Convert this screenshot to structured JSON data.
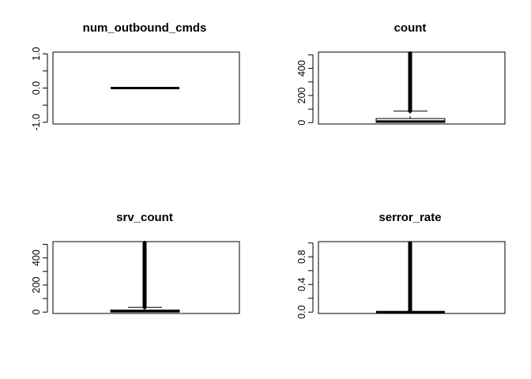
{
  "chart_data": [
    {
      "type": "boxplot",
      "title": "num_outbound_cmds",
      "ylim": [
        -1.05,
        1.05
      ],
      "yticks": [
        -1.0,
        -0.5,
        0.0,
        0.5,
        1.0
      ],
      "ytick_labels": [
        "-1.0",
        "",
        "0.0",
        "",
        "1.0"
      ],
      "box": {
        "min": 0,
        "q1": 0,
        "median": 0,
        "q3": 0,
        "max": 0
      },
      "outliers": {
        "min": null,
        "max": null
      }
    },
    {
      "type": "boxplot",
      "title": "count",
      "ylim": [
        -10,
        520
      ],
      "yticks": [
        0,
        100,
        200,
        300,
        400,
        500
      ],
      "ytick_labels": [
        "0",
        "",
        "200",
        "",
        "400",
        ""
      ],
      "box": {
        "min": 0,
        "q1": 2,
        "median": 8,
        "q3": 30,
        "max": 85
      },
      "outliers": {
        "min": 86,
        "max": 511
      }
    },
    {
      "type": "boxplot",
      "title": "srv_count",
      "ylim": [
        -10,
        520
      ],
      "yticks": [
        0,
        100,
        200,
        300,
        400,
        500
      ],
      "ytick_labels": [
        "0",
        "",
        "200",
        "",
        "400",
        ""
      ],
      "box": {
        "min": 0,
        "q1": 2,
        "median": 6,
        "q3": 15,
        "max": 35
      },
      "outliers": {
        "min": 36,
        "max": 511
      }
    },
    {
      "type": "boxplot",
      "title": "serror_rate",
      "ylim": [
        -0.02,
        1.02
      ],
      "yticks": [
        0.0,
        0.2,
        0.4,
        0.6,
        0.8,
        1.0
      ],
      "ytick_labels": [
        "0.0",
        "",
        "0.4",
        "",
        "0.8",
        ""
      ],
      "box": {
        "min": 0,
        "q1": 0,
        "median": 0,
        "q3": 0,
        "max": 0
      },
      "outliers": {
        "min": 0.01,
        "max": 1.0
      }
    }
  ]
}
